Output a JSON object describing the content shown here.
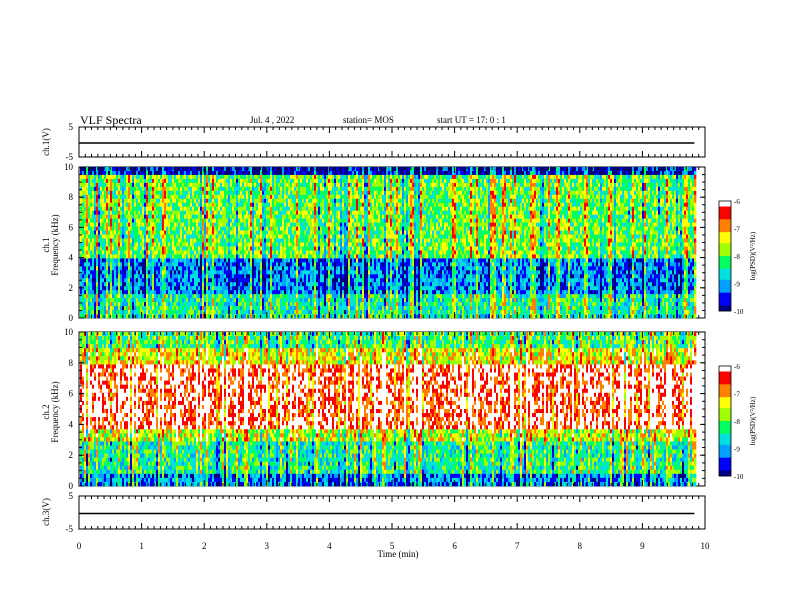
{
  "header": {
    "title": "VLF Spectra",
    "date": "Jul. 4 , 2022",
    "station": "station= MOS",
    "start_ut": "start UT =  17: 0  : 1"
  },
  "chart_data": [
    {
      "type": "line",
      "panel": "ch1-waveform",
      "ylabel": "ch.1(V)",
      "yticks": [
        "5",
        "-5"
      ],
      "ylim": [
        -5,
        5
      ],
      "trace_level": 0
    },
    {
      "type": "heatmap",
      "panel": "ch1-spectrogram",
      "ylabel": "ch.1\nFrequency (kHz)",
      "yticks": [
        "0",
        "2",
        "4",
        "6",
        "8",
        "10"
      ],
      "ylim": [
        0,
        10
      ],
      "colorbar": {
        "label": "log(PSD)(V²/Hz)",
        "ticks": [
          "-6",
          "-7",
          "-8",
          "-9",
          "-10"
        ],
        "range": [
          -10,
          -6
        ]
      }
    },
    {
      "type": "heatmap",
      "panel": "ch2-spectrogram",
      "ylabel": "ch.2\nFrequency (kHz)",
      "yticks": [
        "0",
        "2",
        "4",
        "6",
        "8",
        "10"
      ],
      "ylim": [
        0,
        10
      ],
      "colorbar": {
        "label": "log(PSD)(V²/Hz)",
        "ticks": [
          "-6",
          "-7",
          "-8",
          "-9",
          "-10"
        ],
        "range": [
          -10,
          -6
        ]
      }
    },
    {
      "type": "line",
      "panel": "ch3-waveform",
      "ylabel": "ch.3(V)",
      "yticks": [
        "5",
        "-5"
      ],
      "ylim": [
        -5,
        5
      ],
      "trace_level": 0
    }
  ],
  "x_axis": {
    "label": "Time (min)",
    "ticks": [
      "0",
      "1",
      "2",
      "3",
      "4",
      "5",
      "6",
      "7",
      "8",
      "9",
      "10"
    ],
    "xlim": [
      0,
      10
    ],
    "data_end": 9.83
  },
  "colormap": [
    "#000080",
    "#0000ff",
    "#00a0ff",
    "#00e0e0",
    "#00ff60",
    "#a0ff00",
    "#ffff00",
    "#ff8000",
    "#ff0000",
    "#ffffff"
  ]
}
